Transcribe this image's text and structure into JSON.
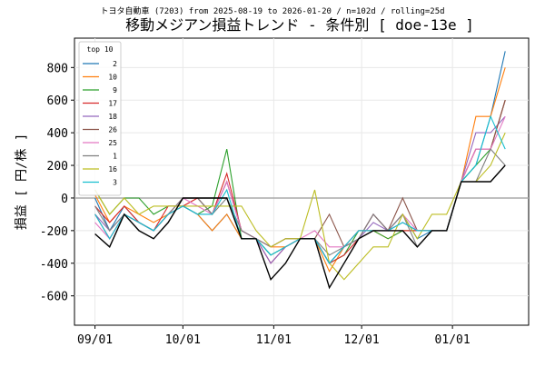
{
  "chart_data": {
    "type": "line",
    "title": "移動メジアン損益トレンド - 条件別 [ doe-13e ]",
    "subtitle": "トヨタ自動車 (7203) from 2025-08-19 to 2026-01-20 / n=102d / rolling=25d",
    "y_label": "損益 [ 円/株 ]",
    "legend_title": "top 10",
    "legend": "upper left",
    "grid": true,
    "x": [
      "09/01",
      "09/06",
      "09/11",
      "09/16",
      "09/21",
      "09/26",
      "10/01",
      "10/06",
      "10/11",
      "10/16",
      "10/21",
      "10/26",
      "10/31",
      "11/05",
      "11/10",
      "11/15",
      "11/20",
      "11/25",
      "11/30",
      "12/05",
      "12/10",
      "12/15",
      "12/20",
      "12/25",
      "12/30",
      "01/04",
      "01/09",
      "01/14",
      "01/19"
    ],
    "xlim": [
      "08/25",
      "01/27"
    ],
    "xticks": [
      "09/01",
      "10/01",
      "11/01",
      "12/01",
      "01/01"
    ],
    "ylim": [
      -780,
      980
    ],
    "yticks": [
      -600,
      -400,
      -200,
      0,
      200,
      400,
      600,
      800
    ],
    "series": [
      {
        "name": "2",
        "color": "#1f77b4",
        "values": [
          0,
          -200,
          -50,
          -150,
          -200,
          -100,
          -50,
          -100,
          -200,
          -100,
          -250,
          -250,
          -350,
          -300,
          -250,
          -250,
          -400,
          -300,
          -250,
          -100,
          -200,
          -100,
          -250,
          -200,
          -200,
          100,
          200,
          500,
          900
        ]
      },
      {
        "name": "10",
        "color": "#ff7f0e",
        "values": [
          20,
          -150,
          -50,
          -100,
          -150,
          -100,
          -50,
          -100,
          -200,
          -100,
          -250,
          -250,
          -300,
          -300,
          -250,
          -250,
          -450,
          -300,
          -200,
          -200,
          -250,
          -200,
          -200,
          -200,
          -200,
          100,
          500,
          500,
          800
        ]
      },
      {
        "name": "9",
        "color": "#2ca02c",
        "values": [
          50,
          -100,
          0,
          0,
          -100,
          -50,
          -50,
          -100,
          -50,
          300,
          -250,
          -250,
          -350,
          -300,
          -250,
          -250,
          -400,
          -350,
          -200,
          -200,
          -250,
          -200,
          -200,
          -200,
          -200,
          100,
          200,
          300,
          600
        ]
      },
      {
        "name": "17",
        "color": "#d62728",
        "values": [
          -50,
          -150,
          -50,
          -150,
          -200,
          -50,
          -50,
          0,
          -100,
          150,
          -200,
          -250,
          -400,
          -300,
          -250,
          -250,
          -400,
          -350,
          -250,
          -100,
          -200,
          -200,
          -200,
          -200,
          -200,
          100,
          300,
          300,
          600
        ]
      },
      {
        "name": "18",
        "color": "#9467bd",
        "values": [
          -100,
          -200,
          -100,
          -150,
          -200,
          -100,
          -50,
          -100,
          -100,
          100,
          -200,
          -250,
          -400,
          -300,
          -250,
          -250,
          -400,
          -300,
          -250,
          -150,
          -200,
          -150,
          -200,
          -200,
          -200,
          100,
          400,
          400,
          500
        ]
      },
      {
        "name": "26",
        "color": "#8c564b",
        "values": [
          -100,
          -250,
          -100,
          -150,
          -200,
          -100,
          0,
          0,
          -100,
          100,
          -200,
          -250,
          -300,
          -250,
          -250,
          -250,
          -100,
          -300,
          -200,
          -200,
          -200,
          0,
          -200,
          -200,
          -200,
          100,
          300,
          300,
          600
        ]
      },
      {
        "name": "25",
        "color": "#e377c2",
        "values": [
          -150,
          -250,
          -100,
          -150,
          -200,
          -100,
          0,
          -50,
          -100,
          100,
          -200,
          -250,
          -300,
          -250,
          -250,
          -200,
          -300,
          -300,
          -200,
          -200,
          -200,
          -100,
          -200,
          -200,
          -200,
          100,
          300,
          300,
          500
        ]
      },
      {
        "name": "1",
        "color": "#7f7f7f",
        "values": [
          -50,
          -200,
          -100,
          -150,
          -200,
          -100,
          0,
          0,
          -100,
          0,
          -200,
          -250,
          -300,
          -250,
          -250,
          -250,
          -350,
          -300,
          -250,
          -100,
          -200,
          -100,
          -300,
          -200,
          -200,
          100,
          100,
          300,
          200
        ]
      },
      {
        "name": "16",
        "color": "#bcbd22",
        "values": [
          50,
          -100,
          0,
          -100,
          -50,
          -50,
          -50,
          -50,
          -50,
          -50,
          -50,
          -200,
          -300,
          -250,
          -250,
          50,
          -400,
          -500,
          -400,
          -300,
          -300,
          -100,
          -250,
          -100,
          -100,
          100,
          100,
          200,
          400
        ]
      },
      {
        "name": "3",
        "color": "#17becf",
        "values": [
          -100,
          -250,
          -100,
          -150,
          -200,
          -100,
          -50,
          -100,
          -100,
          50,
          -250,
          -250,
          -350,
          -300,
          -250,
          -250,
          -400,
          -300,
          -200,
          -200,
          -200,
          -150,
          -200,
          -200,
          -200,
          100,
          200,
          500,
          300
        ]
      },
      {
        "color": "#000000",
        "values": [
          -220,
          -300,
          -100,
          -200,
          -250,
          -150,
          0,
          0,
          0,
          0,
          -250,
          -250,
          -500,
          -400,
          -250,
          -250,
          -550,
          -400,
          -250,
          -200,
          -200,
          -200,
          -300,
          -200,
          -200,
          100,
          100,
          100,
          200
        ]
      }
    ]
  }
}
